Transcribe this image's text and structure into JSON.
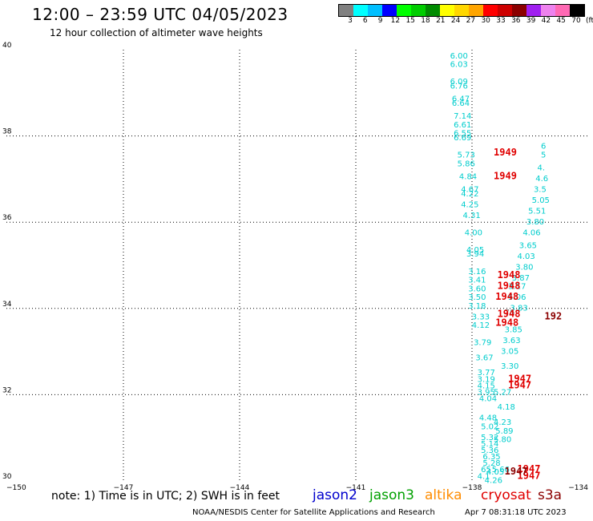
{
  "header": {
    "title": "12:00 – 23:59 UTC 04/05/2023",
    "subtitle": "12 hour collection of altimeter wave heights"
  },
  "colorbar": {
    "colors": [
      "#808080",
      "#00ffff",
      "#00bfff",
      "#0000ff",
      "#00ff00",
      "#00cd00",
      "#008b00",
      "#ffff00",
      "#ffd700",
      "#ffa500",
      "#ff0000",
      "#cd0000",
      "#8b0000",
      "#a020f0",
      "#ee82ee",
      "#ff69b4",
      "#000000"
    ],
    "labels": [
      "3",
      "6",
      "9",
      "12",
      "15",
      "18",
      "21",
      "24",
      "27",
      "30",
      "33",
      "36",
      "39",
      "42",
      "45",
      "70",
      "(ft)"
    ]
  },
  "footer": {
    "note": "note: 1) Time is in UTC; 2) SWH is in feet",
    "credit": "NOAA/NESDIS Center for Satellite Applications and Research",
    "timestamp": "Apr 7 08:31:18 UTC 2023"
  },
  "legend": [
    {
      "name": "jason2",
      "color": "#0000cd"
    },
    {
      "name": "jason3",
      "color": "#00a000"
    },
    {
      "name": "altika",
      "color": "#ff8c00"
    },
    {
      "name": "cryosat",
      "color": "#e00000"
    },
    {
      "name": "s3a",
      "color": "#8b0000"
    }
  ],
  "chart_data": {
    "type": "scatter",
    "title": "12:00 – 23:59 UTC 04/05/2023",
    "xlim": [
      -150,
      -134
    ],
    "ylim": [
      30,
      40
    ],
    "xticks": [
      -150,
      -147,
      -144,
      -141,
      -138,
      -134
    ],
    "yticks": [
      30,
      32,
      34,
      36,
      38,
      40
    ],
    "grid": true,
    "wave_heights": [
      {
        "lon": -137.8,
        "lat": 39.8,
        "v": "6.00",
        "c": "#00cdcd"
      },
      {
        "lon": -137.8,
        "lat": 39.6,
        "v": "6.03",
        "c": "#00cdcd"
      },
      {
        "lon": -137.8,
        "lat": 39.2,
        "v": "6.09",
        "c": "#00cdcd"
      },
      {
        "lon": -137.8,
        "lat": 39.1,
        "v": "6.76",
        "c": "#00cdcd"
      },
      {
        "lon": -137.75,
        "lat": 38.8,
        "v": "6.47",
        "c": "#00cdcd"
      },
      {
        "lon": -137.75,
        "lat": 38.7,
        "v": "6.64",
        "c": "#00cdcd"
      },
      {
        "lon": -137.7,
        "lat": 38.4,
        "v": "7.14",
        "c": "#00cdcd"
      },
      {
        "lon": -137.7,
        "lat": 38.2,
        "v": "6.61",
        "c": "#00cdcd"
      },
      {
        "lon": -137.7,
        "lat": 38.0,
        "v": "6.55",
        "c": "#00cdcd"
      },
      {
        "lon": -137.7,
        "lat": 37.9,
        "v": "6.69",
        "c": "#00cdcd"
      },
      {
        "lon": -137.6,
        "lat": 37.5,
        "v": "5.73",
        "c": "#00cdcd"
      },
      {
        "lon": -137.6,
        "lat": 37.3,
        "v": "5.86",
        "c": "#00cdcd"
      },
      {
        "lon": -137.55,
        "lat": 37.0,
        "v": "4.84",
        "c": "#00cdcd"
      },
      {
        "lon": -137.5,
        "lat": 36.7,
        "v": "4.67",
        "c": "#00cdcd"
      },
      {
        "lon": -137.5,
        "lat": 36.6,
        "v": "4.22",
        "c": "#00cdcd"
      },
      {
        "lon": -137.5,
        "lat": 36.35,
        "v": "4.25",
        "c": "#00cdcd"
      },
      {
        "lon": -137.45,
        "lat": 36.1,
        "v": "4.31",
        "c": "#00cdcd"
      },
      {
        "lon": -137.4,
        "lat": 35.7,
        "v": "4.00",
        "c": "#00cdcd"
      },
      {
        "lon": -137.35,
        "lat": 35.3,
        "v": "4.05",
        "c": "#00cdcd"
      },
      {
        "lon": -137.35,
        "lat": 35.2,
        "v": "3.94",
        "c": "#00cdcd"
      },
      {
        "lon": -137.3,
        "lat": 34.8,
        "v": "3.16",
        "c": "#00cdcd"
      },
      {
        "lon": -137.3,
        "lat": 34.6,
        "v": "3.41",
        "c": "#00cdcd"
      },
      {
        "lon": -137.3,
        "lat": 34.4,
        "v": "3.60",
        "c": "#00cdcd"
      },
      {
        "lon": -137.3,
        "lat": 34.2,
        "v": "3.50",
        "c": "#00cdcd"
      },
      {
        "lon": -137.3,
        "lat": 34.0,
        "v": "3.18",
        "c": "#00cdcd"
      },
      {
        "lon": -137.2,
        "lat": 33.75,
        "v": "3.33",
        "c": "#00cdcd"
      },
      {
        "lon": -137.2,
        "lat": 33.55,
        "v": "4.12",
        "c": "#00cdcd"
      },
      {
        "lon": -137.15,
        "lat": 33.15,
        "v": "3.79",
        "c": "#00cdcd"
      },
      {
        "lon": -137.1,
        "lat": 32.8,
        "v": "3.67",
        "c": "#00cdcd"
      },
      {
        "lon": -137.05,
        "lat": 32.45,
        "v": "3.77",
        "c": "#00cdcd"
      },
      {
        "lon": -137.05,
        "lat": 32.3,
        "v": "3.19",
        "c": "#00cdcd"
      },
      {
        "lon": -137.05,
        "lat": 32.15,
        "v": "4.15",
        "c": "#00cdcd"
      },
      {
        "lon": -137.05,
        "lat": 32.0,
        "v": "3.95",
        "c": "#00cdcd"
      },
      {
        "lon": -137.0,
        "lat": 31.85,
        "v": "4.04",
        "c": "#00cdcd"
      },
      {
        "lon": -137.0,
        "lat": 31.4,
        "v": "4.48",
        "c": "#00cdcd"
      },
      {
        "lon": -136.95,
        "lat": 31.2,
        "v": "5.02",
        "c": "#00cdcd"
      },
      {
        "lon": -136.95,
        "lat": 30.95,
        "v": "5.32",
        "c": "#00cdcd"
      },
      {
        "lon": -136.95,
        "lat": 30.8,
        "v": "5.14",
        "c": "#00cdcd"
      },
      {
        "lon": -136.95,
        "lat": 30.65,
        "v": "5.36",
        "c": "#00cdcd"
      },
      {
        "lon": -136.9,
        "lat": 30.5,
        "v": "6.35",
        "c": "#00cdcd"
      },
      {
        "lon": -136.9,
        "lat": 30.35,
        "v": "5.28",
        "c": "#00cdcd"
      },
      {
        "lon": -136.95,
        "lat": 30.2,
        "v": "65",
        "c": "#00cdcd"
      },
      {
        "lon": -137.05,
        "lat": 30.05,
        "v": "4.1",
        "c": "#00cdcd"
      },
      {
        "lon": -136.8,
        "lat": 30.15,
        "v": "4.05",
        "c": "#00cdcd"
      },
      {
        "lon": -136.85,
        "lat": 29.95,
        "v": "4.26",
        "c": "#00cdcd"
      },
      {
        "lon": -136.65,
        "lat": 30.2,
        "v": "5.66",
        "c": "#00cdcd"
      },
      {
        "lon": -136.6,
        "lat": 31.3,
        "v": "4.23",
        "c": "#00cdcd"
      },
      {
        "lon": -136.55,
        "lat": 31.1,
        "v": "5.89",
        "c": "#00cdcd"
      },
      {
        "lon": -136.6,
        "lat": 30.9,
        "v": "5.80",
        "c": "#00cdcd"
      },
      {
        "lon": -136.5,
        "lat": 31.65,
        "v": "4.18",
        "c": "#00cdcd"
      },
      {
        "lon": -136.6,
        "lat": 32.0,
        "v": "5.27",
        "c": "#00cdcd"
      },
      {
        "lon": -136.4,
        "lat": 32.6,
        "v": "3.30",
        "c": "#00cdcd"
      },
      {
        "lon": -136.4,
        "lat": 32.95,
        "v": "3.05",
        "c": "#00cdcd"
      },
      {
        "lon": -136.35,
        "lat": 33.2,
        "v": "3.63",
        "c": "#00cdcd"
      },
      {
        "lon": -136.3,
        "lat": 33.45,
        "v": "3.85",
        "c": "#00cdcd"
      },
      {
        "lon": -136.2,
        "lat": 34.2,
        "v": "5.06",
        "c": "#00cdcd"
      },
      {
        "lon": -136.2,
        "lat": 34.45,
        "v": "3.17",
        "c": "#00cdcd"
      },
      {
        "lon": -136.1,
        "lat": 34.65,
        "v": "3.87",
        "c": "#00cdcd"
      },
      {
        "lon": -136.0,
        "lat": 34.9,
        "v": "3.80",
        "c": "#00cdcd"
      },
      {
        "lon": -135.95,
        "lat": 35.15,
        "v": "4.03",
        "c": "#00cdcd"
      },
      {
        "lon": -135.9,
        "lat": 35.4,
        "v": "3.65",
        "c": "#00cdcd"
      },
      {
        "lon": -135.8,
        "lat": 35.7,
        "v": "4.06",
        "c": "#00cdcd"
      },
      {
        "lon": -135.7,
        "lat": 35.95,
        "v": "3.80",
        "c": "#00cdcd"
      },
      {
        "lon": -135.65,
        "lat": 36.2,
        "v": "5.51",
        "c": "#00cdcd"
      },
      {
        "lon": -135.55,
        "lat": 36.45,
        "v": "5.05",
        "c": "#00cdcd"
      },
      {
        "lon": -135.5,
        "lat": 36.7,
        "v": "3.5",
        "c": "#00cdcd"
      },
      {
        "lon": -135.45,
        "lat": 36.95,
        "v": "4.6",
        "c": "#00cdcd"
      },
      {
        "lon": -135.4,
        "lat": 37.2,
        "v": "4.",
        "c": "#00cdcd"
      },
      {
        "lon": -135.3,
        "lat": 37.5,
        "v": "5",
        "c": "#00cdcd"
      },
      {
        "lon": -135.3,
        "lat": 37.7,
        "v": "6",
        "c": "#00cdcd"
      },
      {
        "lon": -136.15,
        "lat": 33.95,
        "v": "3.83",
        "c": "#00cdcd"
      },
      {
        "lon": -136.3,
        "lat": 33.85,
        "v": "76",
        "c": "#808080"
      }
    ],
    "time_labels": [
      {
        "lon": -136.6,
        "lat": 37.55,
        "v": "1949",
        "c": "#e00000"
      },
      {
        "lon": -136.6,
        "lat": 37.0,
        "v": "1949",
        "c": "#e00000"
      },
      {
        "lon": -136.5,
        "lat": 34.7,
        "v": "1948",
        "c": "#e00000"
      },
      {
        "lon": -136.5,
        "lat": 34.45,
        "v": "1948",
        "c": "#e00000"
      },
      {
        "lon": -136.55,
        "lat": 34.2,
        "v": "1948",
        "c": "#e00000"
      },
      {
        "lon": -136.5,
        "lat": 33.8,
        "v": "1948",
        "c": "#e00000"
      },
      {
        "lon": -136.55,
        "lat": 33.6,
        "v": "1948",
        "c": "#e00000"
      },
      {
        "lon": -136.2,
        "lat": 32.3,
        "v": "1947",
        "c": "#e00000"
      },
      {
        "lon": -136.2,
        "lat": 32.15,
        "v": "1947",
        "c": "#e00000"
      },
      {
        "lon": -135.95,
        "lat": 30.2,
        "v": "1947",
        "c": "#e00000"
      },
      {
        "lon": -135.95,
        "lat": 30.05,
        "v": "1947",
        "c": "#e00000"
      },
      {
        "lon": -136.3,
        "lat": 30.15,
        "v": "1947",
        "c": "#8b0000"
      },
      {
        "lon": -135.2,
        "lat": 33.75,
        "v": "192",
        "c": "#8b0000"
      }
    ]
  }
}
